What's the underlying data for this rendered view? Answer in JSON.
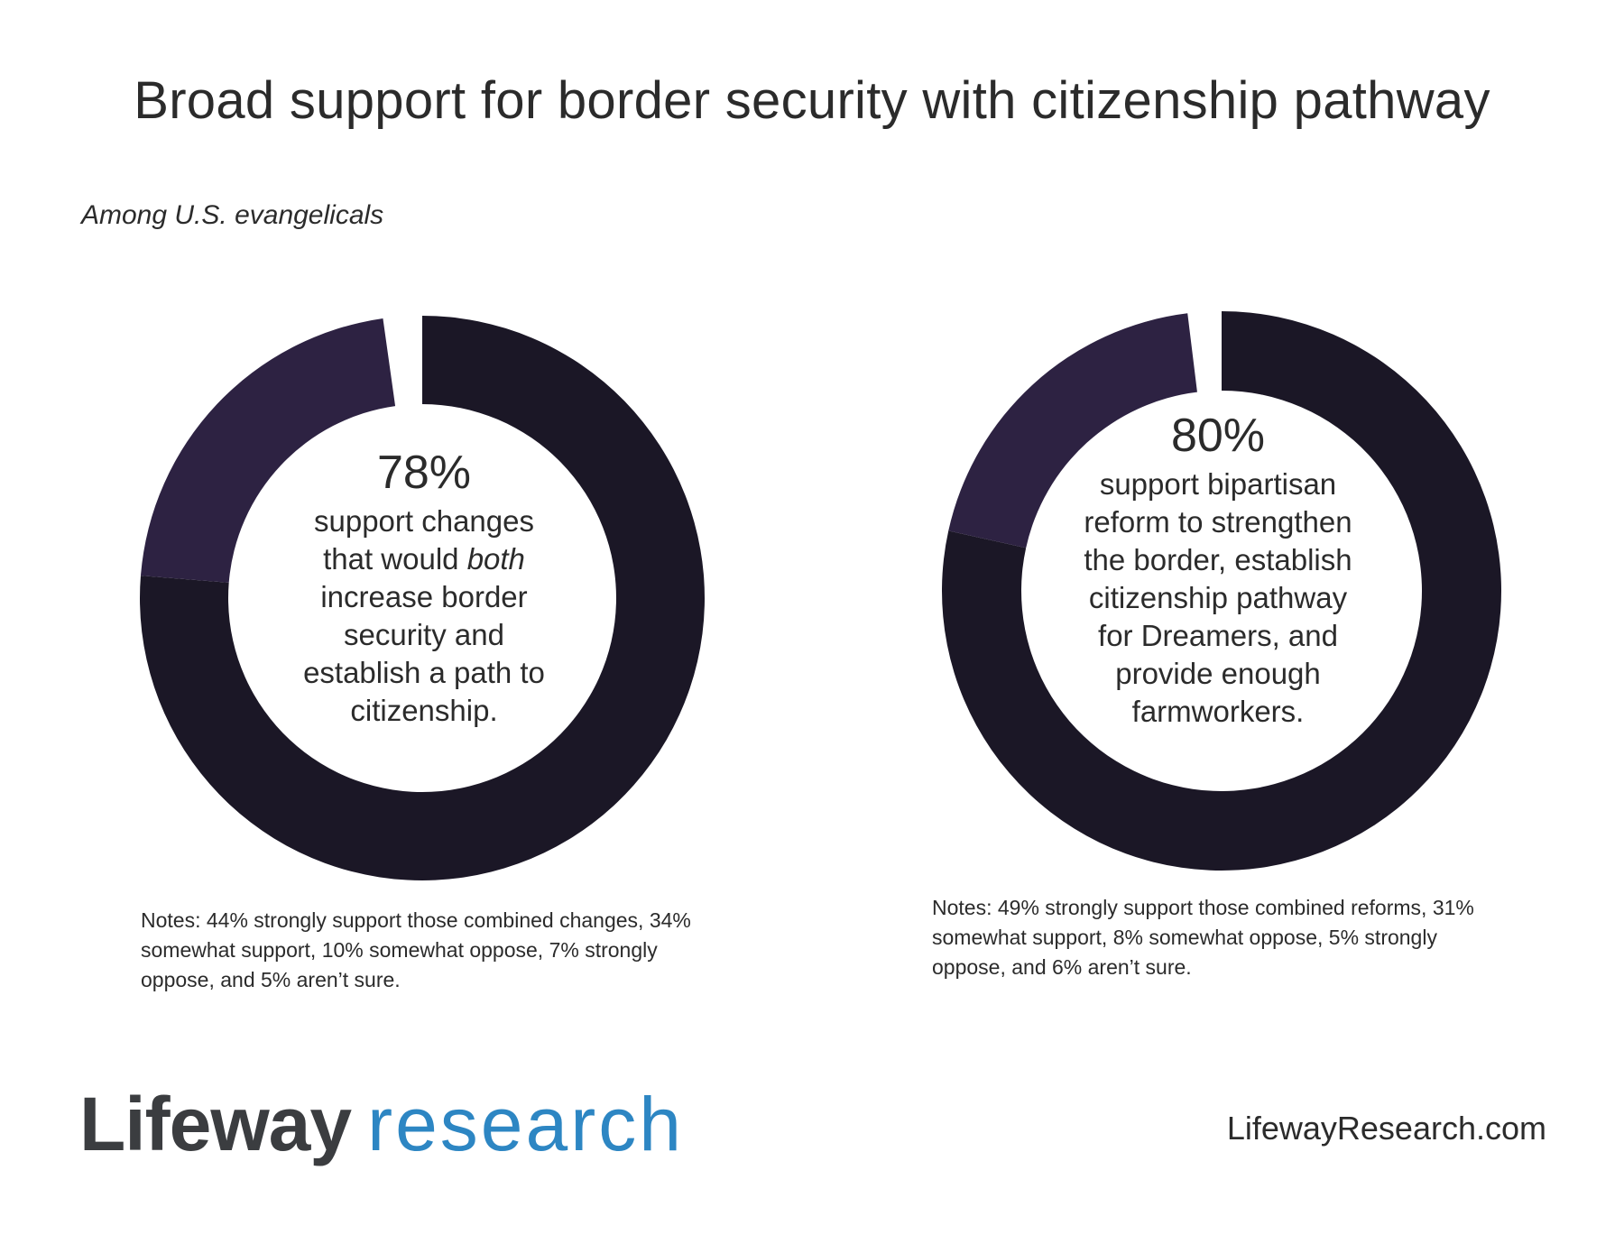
{
  "header": {
    "title": "Broad support for border security with citizenship pathway",
    "subtitle": "Among U.S. evangelicals"
  },
  "colors": {
    "support": "#1b1726",
    "rest": "#2d2242",
    "text": "#2b2b2b",
    "brand_dark": "#3b3d40",
    "brand_blue": "#2d86c3"
  },
  "chart_data": [
    {
      "type": "pie",
      "variant": "donut",
      "slices": [
        {
          "label": "support",
          "value": 78
        },
        {
          "label": "other",
          "value": 22
        }
      ],
      "center_value": "78%",
      "center_text_lines": [
        "support changes",
        "that would ",
        "increase border",
        "security and",
        "establish a path to",
        "citizenship."
      ],
      "center_emphasis": "both",
      "notes": "Notes: 44% strongly support those combined changes, 34% somewhat support, 10% somewhat oppose, 7% strongly oppose, and 5% aren’t sure."
    },
    {
      "type": "pie",
      "variant": "donut",
      "slices": [
        {
          "label": "support",
          "value": 80
        },
        {
          "label": "other",
          "value": 20
        }
      ],
      "center_value": "80%",
      "center_text_lines": [
        "support bipartisan",
        "reform to strengthen",
        "the border, establish",
        "citizenship pathway",
        "for Dreamers, and",
        "provide enough",
        "farmworkers."
      ],
      "notes": "Notes: 49% strongly support those combined reforms, 31% somewhat support, 8% somewhat oppose, 5% strongly oppose, and 6% aren’t sure."
    }
  ],
  "footer": {
    "logo_word1": "Lifeway",
    "logo_word2": "research",
    "website": "LifewayResearch.com"
  }
}
